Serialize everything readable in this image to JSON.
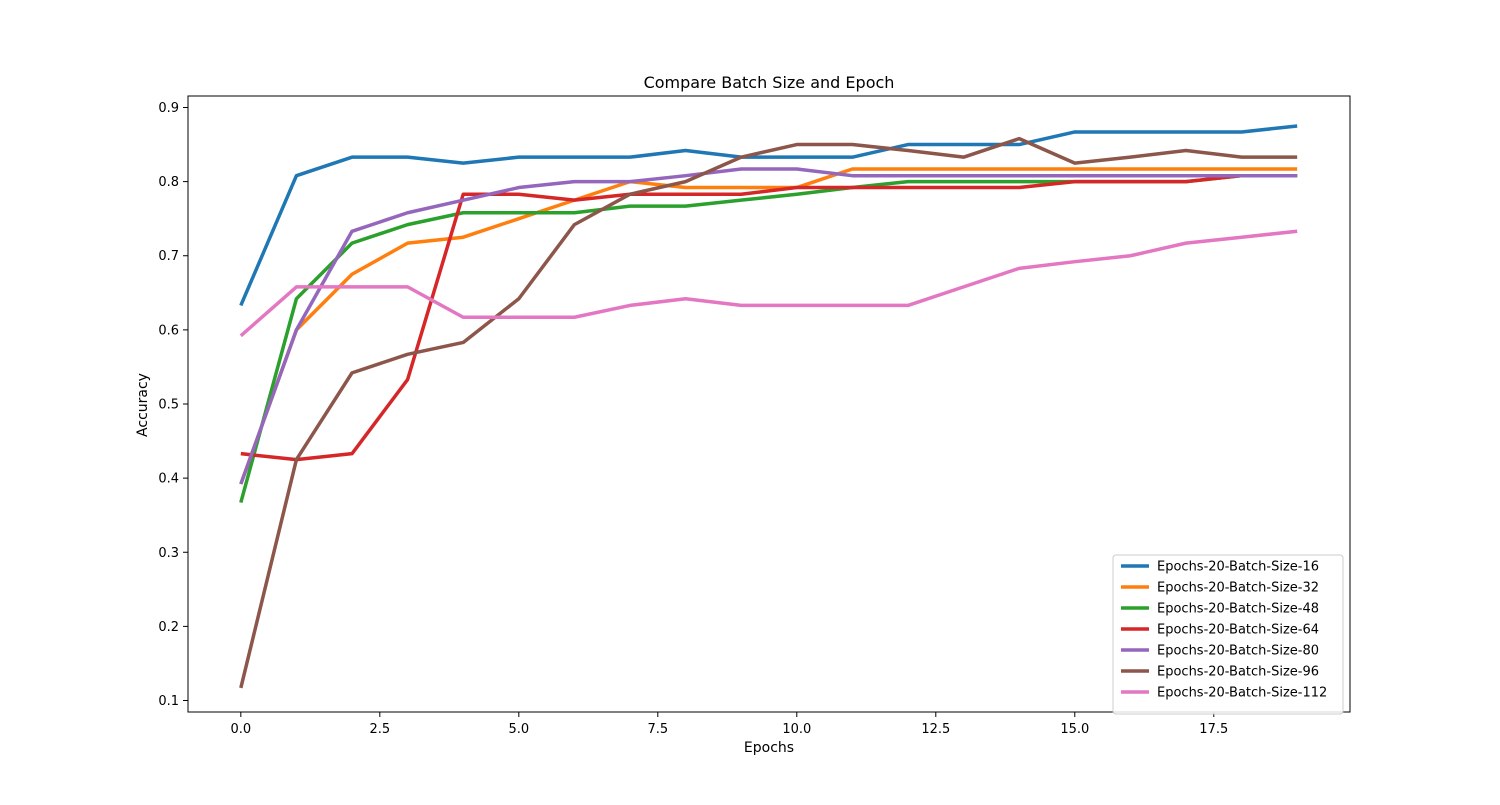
{
  "chart_data": {
    "type": "line",
    "title": "Compare Batch Size and Epoch",
    "xlabel": "Epochs",
    "ylabel": "Accuracy",
    "xlim": [
      -0.95,
      19.95
    ],
    "ylim": [
      0.0845,
      0.9155
    ],
    "x_ticks": [
      0,
      2.5,
      5,
      7.5,
      10,
      12.5,
      15,
      17.5
    ],
    "x_tick_labels": [
      "0.0",
      "2.5",
      "5.0",
      "7.5",
      "10.0",
      "12.5",
      "15.0",
      "17.5"
    ],
    "y_ticks": [
      0.1,
      0.2,
      0.3,
      0.4,
      0.5,
      0.6,
      0.7,
      0.8,
      0.9
    ],
    "y_tick_labels": [
      "0.1",
      "0.2",
      "0.3",
      "0.4",
      "0.5",
      "0.6",
      "0.7",
      "0.8",
      "0.9"
    ],
    "grid": false,
    "legend_position": "lower-right",
    "x": [
      0,
      1,
      2,
      3,
      4,
      5,
      6,
      7,
      8,
      9,
      10,
      11,
      12,
      13,
      14,
      15,
      16,
      17,
      18,
      19
    ],
    "series": [
      {
        "name": "Epochs-20-Batch-Size-16",
        "color": "#1f77b4",
        "values": [
          0.633,
          0.808,
          0.833,
          0.833,
          0.825,
          0.833,
          0.833,
          0.833,
          0.842,
          0.833,
          0.833,
          0.833,
          0.85,
          0.85,
          0.85,
          0.867,
          0.867,
          0.867,
          0.867,
          0.875
        ]
      },
      {
        "name": "Epochs-20-Batch-Size-32",
        "color": "#ff7f0e",
        "values": [
          0.392,
          0.6,
          0.675,
          0.717,
          0.725,
          0.75,
          0.775,
          0.8,
          0.792,
          0.792,
          0.792,
          0.817,
          0.817,
          0.817,
          0.817,
          0.817,
          0.817,
          0.817,
          0.817,
          0.817
        ]
      },
      {
        "name": "Epochs-20-Batch-Size-48",
        "color": "#2ca02c",
        "values": [
          0.367,
          0.642,
          0.717,
          0.742,
          0.758,
          0.758,
          0.758,
          0.767,
          0.767,
          0.775,
          0.783,
          0.792,
          0.8,
          0.8,
          0.8,
          0.8,
          0.8,
          0.8,
          0.808,
          0.808
        ]
      },
      {
        "name": "Epochs-20-Batch-Size-64",
        "color": "#d62728",
        "values": [
          0.433,
          0.425,
          0.433,
          0.533,
          0.783,
          0.783,
          0.775,
          0.783,
          0.783,
          0.783,
          0.792,
          0.792,
          0.792,
          0.792,
          0.792,
          0.8,
          0.8,
          0.8,
          0.808,
          0.808
        ]
      },
      {
        "name": "Epochs-20-Batch-Size-80",
        "color": "#9467bd",
        "values": [
          0.392,
          0.6,
          0.733,
          0.758,
          0.775,
          0.792,
          0.8,
          0.8,
          0.808,
          0.817,
          0.817,
          0.808,
          0.808,
          0.808,
          0.808,
          0.808,
          0.808,
          0.808,
          0.808,
          0.808
        ]
      },
      {
        "name": "Epochs-20-Batch-Size-96",
        "color": "#8c564b",
        "values": [
          0.117,
          0.425,
          0.542,
          0.567,
          0.583,
          0.642,
          0.742,
          0.783,
          0.8,
          0.833,
          0.85,
          0.85,
          0.842,
          0.833,
          0.858,
          0.825,
          0.833,
          0.842,
          0.833,
          0.833
        ]
      },
      {
        "name": "Epochs-20-Batch-Size-112",
        "color": "#e377c2",
        "values": [
          0.592,
          0.658,
          0.658,
          0.658,
          0.617,
          0.617,
          0.617,
          0.633,
          0.642,
          0.633,
          0.633,
          0.633,
          0.633,
          0.658,
          0.683,
          0.692,
          0.7,
          0.717,
          0.725,
          0.733
        ]
      }
    ]
  }
}
